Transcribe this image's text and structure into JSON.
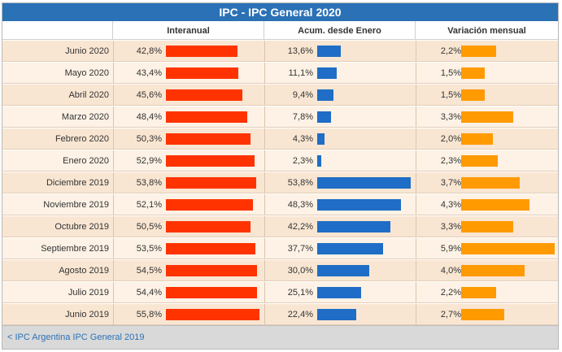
{
  "title": "IPC - IPC General 2020",
  "chart_data": {
    "type": "table",
    "title": "IPC - IPC General 2020",
    "columns": [
      "Interanual",
      "Acum. desde Enero",
      "Variación mensual"
    ],
    "colors": [
      "#ff3300",
      "#1f6dc6",
      "#ff9a00"
    ],
    "rows": [
      {
        "label": "Junio 2020",
        "interanual": "42,8%",
        "acum": "13,6%",
        "mensual": "2,2%",
        "v": [
          42.8,
          13.6,
          2.2
        ]
      },
      {
        "label": "Mayo 2020",
        "interanual": "43,4%",
        "acum": "11,1%",
        "mensual": "1,5%",
        "v": [
          43.4,
          11.1,
          1.5
        ]
      },
      {
        "label": "Abril 2020",
        "interanual": "45,6%",
        "acum": "9,4%",
        "mensual": "1,5%",
        "v": [
          45.6,
          9.4,
          1.5
        ]
      },
      {
        "label": "Marzo 2020",
        "interanual": "48,4%",
        "acum": "7,8%",
        "mensual": "3,3%",
        "v": [
          48.4,
          7.8,
          3.3
        ]
      },
      {
        "label": "Febrero 2020",
        "interanual": "50,3%",
        "acum": "4,3%",
        "mensual": "2,0%",
        "v": [
          50.3,
          4.3,
          2.0
        ]
      },
      {
        "label": "Enero 2020",
        "interanual": "52,9%",
        "acum": "2,3%",
        "mensual": "2,3%",
        "v": [
          52.9,
          2.3,
          2.3
        ]
      },
      {
        "label": "Diciembre 2019",
        "interanual": "53,8%",
        "acum": "53,8%",
        "mensual": "3,7%",
        "v": [
          53.8,
          53.8,
          3.7
        ]
      },
      {
        "label": "Noviembre 2019",
        "interanual": "52,1%",
        "acum": "48,3%",
        "mensual": "4,3%",
        "v": [
          52.1,
          48.3,
          4.3
        ]
      },
      {
        "label": "Octubre 2019",
        "interanual": "50,5%",
        "acum": "42,2%",
        "mensual": "3,3%",
        "v": [
          50.5,
          42.2,
          3.3
        ]
      },
      {
        "label": "Septiembre 2019",
        "interanual": "53,5%",
        "acum": "37,7%",
        "mensual": "5,9%",
        "v": [
          53.5,
          37.7,
          5.9
        ]
      },
      {
        "label": "Agosto 2019",
        "interanual": "54,5%",
        "acum": "30,0%",
        "mensual": "4,0%",
        "v": [
          54.5,
          30.0,
          4.0
        ]
      },
      {
        "label": "Julio 2019",
        "interanual": "54,4%",
        "acum": "25,1%",
        "mensual": "2,2%",
        "v": [
          54.4,
          25.1,
          2.2
        ]
      },
      {
        "label": "Junio 2019",
        "interanual": "55,8%",
        "acum": "22,4%",
        "mensual": "2,7%",
        "v": [
          55.8,
          22.4,
          2.7
        ]
      }
    ],
    "scale_max": [
      55.8,
      53.8,
      5.9
    ]
  },
  "footer": {
    "link": "< IPC Argentina IPC General 2019"
  }
}
